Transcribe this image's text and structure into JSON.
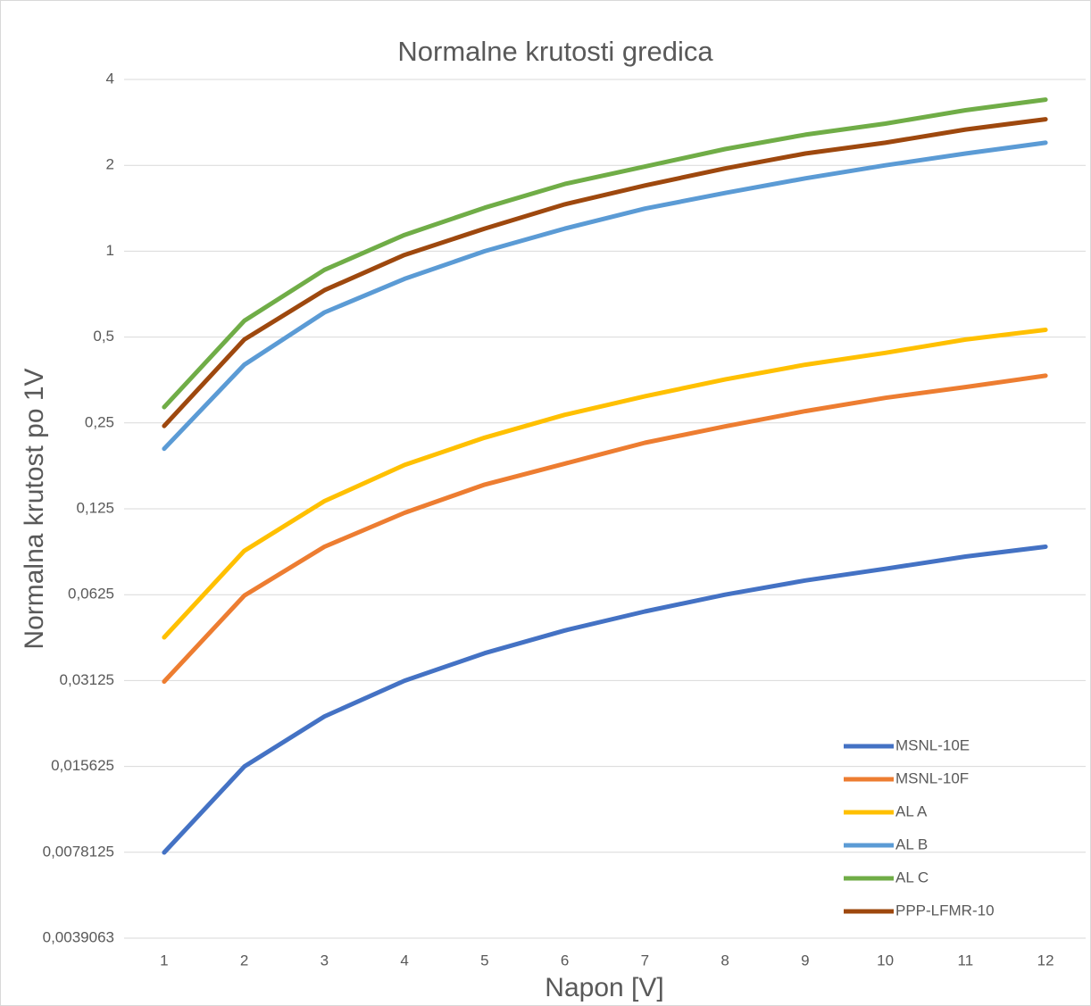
{
  "chart_data": {
    "type": "line",
    "title": "Normalne krutosti gredica",
    "x_label": "Napon [V]",
    "y_label": "Normalna krutost po 1V",
    "categories": [
      "1",
      "2",
      "3",
      "4",
      "5",
      "6",
      "7",
      "8",
      "9",
      "10",
      "11",
      "12"
    ],
    "log_scale_y": 2,
    "grid": true,
    "legend": "bottom-right",
    "ylim": [
      0.0039063,
      4
    ],
    "yticks": [
      {
        "value": 0.0039063,
        "label": "0,0039063"
      },
      {
        "value": 0.0078125,
        "label": "0,0078125"
      },
      {
        "value": 0.015625,
        "label": "0,015625"
      },
      {
        "value": 0.03125,
        "label": "0,03125"
      },
      {
        "value": 0.0625,
        "label": "0,0625"
      },
      {
        "value": 0.125,
        "label": "0,125"
      },
      {
        "value": 0.25,
        "label": "0,25"
      },
      {
        "value": 0.5,
        "label": "0,5"
      },
      1,
      2,
      4
    ],
    "series": [
      {
        "name": "MSNL-10E",
        "color": "#4472c4",
        "values": [
          0.0078,
          0.0156,
          0.0234,
          0.0312,
          0.039,
          0.0468,
          0.0546,
          0.0625,
          0.0701,
          0.077,
          0.085,
          0.092
        ]
      },
      {
        "name": "MSNL-10F",
        "color": "#ed7d31",
        "values": [
          0.031,
          0.062,
          0.092,
          0.121,
          0.152,
          0.18,
          0.213,
          0.243,
          0.275,
          0.306,
          0.334,
          0.366
        ]
      },
      {
        "name": "AL A",
        "color": "#ffc000",
        "values": [
          0.0443,
          0.089,
          0.133,
          0.178,
          0.222,
          0.267,
          0.31,
          0.355,
          0.4,
          0.44,
          0.49,
          0.53
        ]
      },
      {
        "name": "AL B",
        "color": "#5b9bd5",
        "values": [
          0.203,
          0.4,
          0.61,
          0.8,
          1.0,
          1.2,
          1.41,
          1.6,
          1.8,
          2.0,
          2.2,
          2.4
        ]
      },
      {
        "name": "AL C",
        "color": "#70ad47",
        "values": [
          0.284,
          0.57,
          0.86,
          1.14,
          1.42,
          1.72,
          1.98,
          2.28,
          2.56,
          2.8,
          3.12,
          3.4
        ]
      },
      {
        "name": "PPP-LFMR-10",
        "color": "#9e480e",
        "values": [
          0.244,
          0.49,
          0.73,
          0.97,
          1.2,
          1.46,
          1.7,
          1.95,
          2.2,
          2.4,
          2.67,
          2.9
        ]
      }
    ]
  }
}
